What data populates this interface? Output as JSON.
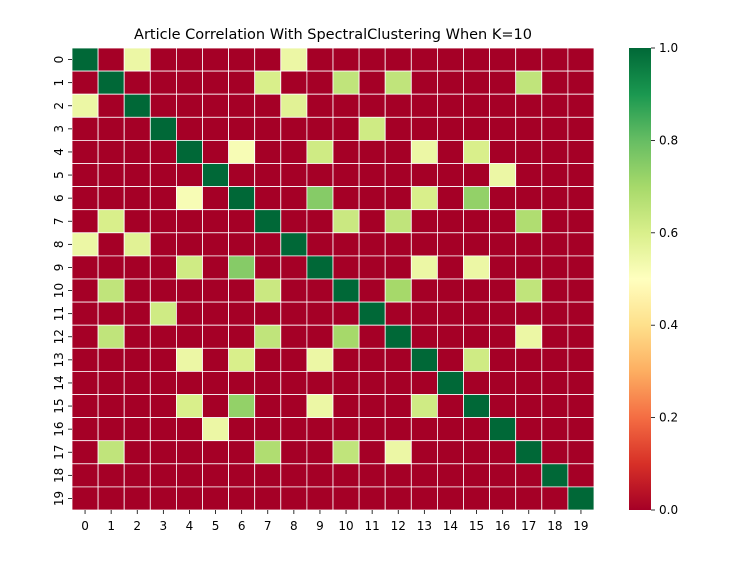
{
  "chart_data": {
    "type": "heatmap",
    "title": "Article Correlation With SpectralClustering When K=10",
    "xlabel": "",
    "ylabel": "",
    "x_categories": [
      "0",
      "1",
      "2",
      "3",
      "4",
      "5",
      "6",
      "7",
      "8",
      "9",
      "10",
      "11",
      "12",
      "13",
      "14",
      "15",
      "16",
      "17",
      "18",
      "19"
    ],
    "y_categories": [
      "0",
      "1",
      "2",
      "3",
      "4",
      "5",
      "6",
      "7",
      "8",
      "9",
      "10",
      "11",
      "12",
      "13",
      "14",
      "15",
      "16",
      "17",
      "18",
      "19"
    ],
    "values": [
      [
        1,
        0,
        0.55,
        0,
        0,
        0,
        0,
        0,
        0.55,
        0,
        0,
        0,
        0,
        0,
        0,
        0,
        0,
        0,
        0,
        0
      ],
      [
        0,
        1,
        0,
        0,
        0,
        0,
        0,
        0.6,
        0,
        0,
        0.65,
        0,
        0.65,
        0,
        0,
        0,
        0,
        0.65,
        0,
        0
      ],
      [
        0.55,
        0,
        1,
        0,
        0,
        0,
        0,
        0,
        0.58,
        0,
        0,
        0,
        0,
        0,
        0,
        0,
        0,
        0,
        0,
        0
      ],
      [
        0,
        0,
        0,
        1,
        0,
        0,
        0,
        0,
        0,
        0,
        0,
        0.62,
        0,
        0,
        0,
        0,
        0,
        0,
        0,
        0
      ],
      [
        0,
        0,
        0,
        0,
        1,
        0,
        0.52,
        0,
        0,
        0.62,
        0,
        0,
        0,
        0.55,
        0,
        0.6,
        0,
        0,
        0,
        0
      ],
      [
        0,
        0,
        0,
        0,
        0,
        1,
        0,
        0,
        0,
        0,
        0,
        0,
        0,
        0,
        0,
        0,
        0.55,
        0,
        0,
        0
      ],
      [
        0,
        0,
        0,
        0,
        0.52,
        0,
        1,
        0,
        0,
        0.75,
        0,
        0,
        0,
        0.6,
        0,
        0.73,
        0,
        0,
        0,
        0
      ],
      [
        0,
        0.6,
        0,
        0,
        0,
        0,
        0,
        1,
        0,
        0,
        0.63,
        0,
        0.65,
        0,
        0,
        0,
        0,
        0.68,
        0,
        0
      ],
      [
        0.55,
        0,
        0.58,
        0,
        0,
        0,
        0,
        0,
        1,
        0,
        0,
        0,
        0,
        0,
        0,
        0,
        0,
        0,
        0,
        0
      ],
      [
        0,
        0,
        0,
        0,
        0.62,
        0,
        0.75,
        0,
        0,
        1,
        0,
        0,
        0,
        0.55,
        0,
        0.55,
        0,
        0,
        0,
        0
      ],
      [
        0,
        0.65,
        0,
        0,
        0,
        0,
        0,
        0.63,
        0,
        0,
        1,
        0,
        0.7,
        0,
        0,
        0,
        0,
        0.65,
        0,
        0
      ],
      [
        0,
        0,
        0,
        0.62,
        0,
        0,
        0,
        0,
        0,
        0,
        0,
        1,
        0,
        0,
        0,
        0,
        0,
        0,
        0,
        0
      ],
      [
        0,
        0.65,
        0,
        0,
        0,
        0,
        0,
        0.65,
        0,
        0,
        0.7,
        0,
        1,
        0,
        0,
        0,
        0,
        0.55,
        0,
        0
      ],
      [
        0,
        0,
        0,
        0,
        0.55,
        0,
        0.6,
        0,
        0,
        0.55,
        0,
        0,
        0,
        1,
        0,
        0.62,
        0,
        0,
        0,
        0
      ],
      [
        0,
        0,
        0,
        0,
        0,
        0,
        0,
        0,
        0,
        0,
        0,
        0,
        0,
        0,
        1,
        0,
        0,
        0,
        0,
        0
      ],
      [
        0,
        0,
        0,
        0,
        0.6,
        0,
        0.73,
        0,
        0,
        0.55,
        0,
        0,
        0,
        0.62,
        0,
        1,
        0,
        0,
        0,
        0
      ],
      [
        0,
        0,
        0,
        0,
        0,
        0.55,
        0,
        0,
        0,
        0,
        0,
        0,
        0,
        0,
        0,
        0,
        1,
        0,
        0,
        0
      ],
      [
        0,
        0.65,
        0,
        0,
        0,
        0,
        0,
        0.68,
        0,
        0,
        0.65,
        0,
        0.55,
        0,
        0,
        0,
        0,
        1,
        0,
        0
      ],
      [
        0,
        0,
        0,
        0,
        0,
        0,
        0,
        0,
        0,
        0,
        0,
        0,
        0,
        0,
        0,
        0,
        0,
        0,
        1,
        0
      ],
      [
        0,
        0,
        0,
        0,
        0,
        0,
        0,
        0,
        0,
        0,
        0,
        0,
        0,
        0,
        0,
        0,
        0,
        0,
        0,
        1
      ]
    ],
    "colormap": "RdYlGn",
    "vmin": 0,
    "vmax": 1,
    "colorbar_ticks": [
      "0.0",
      "0.2",
      "0.4",
      "0.6",
      "0.8",
      "1.0"
    ],
    "colorbar_values": [
      0,
      0.2,
      0.4,
      0.6,
      0.8,
      1.0
    ],
    "grid_line_color": "#ffffff",
    "colors": [
      "#a50026",
      "#d73027",
      "#f46d43",
      "#fdae61",
      "#fee08b",
      "#ffffbf",
      "#d9ef8b",
      "#a6d96a",
      "#66bd63",
      "#1a9850",
      "#006837"
    ]
  }
}
